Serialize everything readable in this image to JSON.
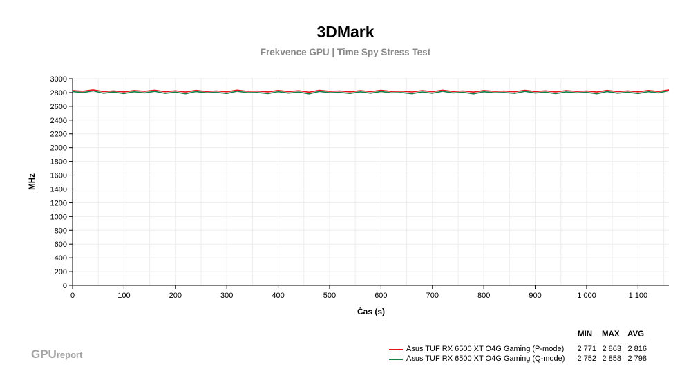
{
  "header": {
    "title": "3DMark",
    "subtitle": "Frekvence GPU | Time Spy Stress Test"
  },
  "logo": {
    "main": "GPU",
    "small": "report"
  },
  "colors": {
    "series_p": "#e8141b",
    "series_q": "#128249",
    "grid": "#ededed",
    "axis": "#000000"
  },
  "legend": {
    "col_min": "MIN",
    "col_max": "MAX",
    "col_avg": "AVG",
    "rows": [
      {
        "name": "Asus TUF RX 6500 XT O4G Gaming (P-mode)",
        "min": "2 771",
        "max": "2 863",
        "avg": "2 816"
      },
      {
        "name": "Asus TUF RX 6500 XT O4G Gaming (Q-mode)",
        "min": "2 752",
        "max": "2 858",
        "avg": "2 798"
      }
    ]
  },
  "chart_data": {
    "type": "line",
    "title": "3DMark",
    "subtitle": "Frekvence GPU | Time Spy Stress Test",
    "xlabel": "Čas (s)",
    "ylabel": "MHz",
    "xlim": [
      0,
      1160
    ],
    "ylim": [
      0,
      3000
    ],
    "x_ticks": [
      0,
      100,
      200,
      300,
      400,
      500,
      600,
      700,
      800,
      900,
      1000,
      1100
    ],
    "x_tick_labels": [
      "0",
      "100",
      "200",
      "300",
      "400",
      "500",
      "600",
      "700",
      "800",
      "900",
      "1 000",
      "1 100"
    ],
    "y_ticks": [
      0,
      200,
      400,
      600,
      800,
      1000,
      1200,
      1400,
      1600,
      1800,
      2000,
      2200,
      2400,
      2600,
      2800,
      3000
    ],
    "y_tick_labels": [
      "0",
      "200",
      "400",
      "600",
      "800",
      "1000",
      "1200",
      "1400",
      "1600",
      "1800",
      "2000",
      "2200",
      "2400",
      "2600",
      "2800",
      "3000"
    ],
    "grid": true,
    "legend_position": "bottom-right",
    "series": [
      {
        "name": "Asus TUF RX 6500 XT O4G Gaming (P-mode)",
        "color": "#e8141b",
        "x": [
          0,
          20,
          40,
          60,
          80,
          100,
          120,
          140,
          160,
          180,
          200,
          220,
          240,
          260,
          280,
          300,
          320,
          340,
          360,
          380,
          400,
          420,
          440,
          460,
          480,
          500,
          520,
          540,
          560,
          580,
          600,
          620,
          640,
          660,
          680,
          700,
          720,
          740,
          760,
          780,
          800,
          820,
          840,
          860,
          880,
          900,
          920,
          940,
          960,
          980,
          1000,
          1020,
          1040,
          1060,
          1080,
          1100,
          1120,
          1140,
          1160
        ],
        "values": [
          2830,
          2820,
          2840,
          2815,
          2825,
          2810,
          2830,
          2818,
          2835,
          2812,
          2826,
          2808,
          2832,
          2816,
          2824,
          2811,
          2836,
          2819,
          2822,
          2810,
          2831,
          2815,
          2827,
          2806,
          2834,
          2818,
          2823,
          2811,
          2829,
          2814,
          2833,
          2817,
          2821,
          2809,
          2828,
          2813,
          2835,
          2816,
          2824,
          2807,
          2830,
          2818,
          2822,
          2812,
          2834,
          2815,
          2826,
          2810,
          2829,
          2817,
          2823,
          2808,
          2832,
          2814,
          2825,
          2811,
          2831,
          2816,
          2840
        ]
      },
      {
        "name": "Asus TUF RX 6500 XT O4G Gaming (Q-mode)",
        "color": "#128249",
        "x": [
          0,
          20,
          40,
          60,
          80,
          100,
          120,
          140,
          160,
          180,
          200,
          220,
          240,
          260,
          280,
          300,
          320,
          340,
          360,
          380,
          400,
          420,
          440,
          460,
          480,
          500,
          520,
          540,
          560,
          580,
          600,
          620,
          640,
          660,
          680,
          700,
          720,
          740,
          760,
          780,
          800,
          820,
          840,
          860,
          880,
          900,
          920,
          940,
          960,
          980,
          1000,
          1020,
          1040,
          1060,
          1080,
          1100,
          1120,
          1140,
          1160
        ],
        "values": [
          2815,
          2800,
          2825,
          2790,
          2808,
          2785,
          2812,
          2795,
          2818,
          2788,
          2806,
          2782,
          2815,
          2797,
          2803,
          2786,
          2820,
          2799,
          2801,
          2784,
          2813,
          2792,
          2807,
          2780,
          2817,
          2798,
          2802,
          2787,
          2811,
          2791,
          2816,
          2796,
          2800,
          2783,
          2809,
          2790,
          2819,
          2795,
          2804,
          2781,
          2812,
          2797,
          2801,
          2788,
          2818,
          2793,
          2806,
          2784,
          2810,
          2796,
          2803,
          2782,
          2815,
          2791,
          2805,
          2786,
          2813,
          2795,
          2828
        ]
      }
    ]
  }
}
